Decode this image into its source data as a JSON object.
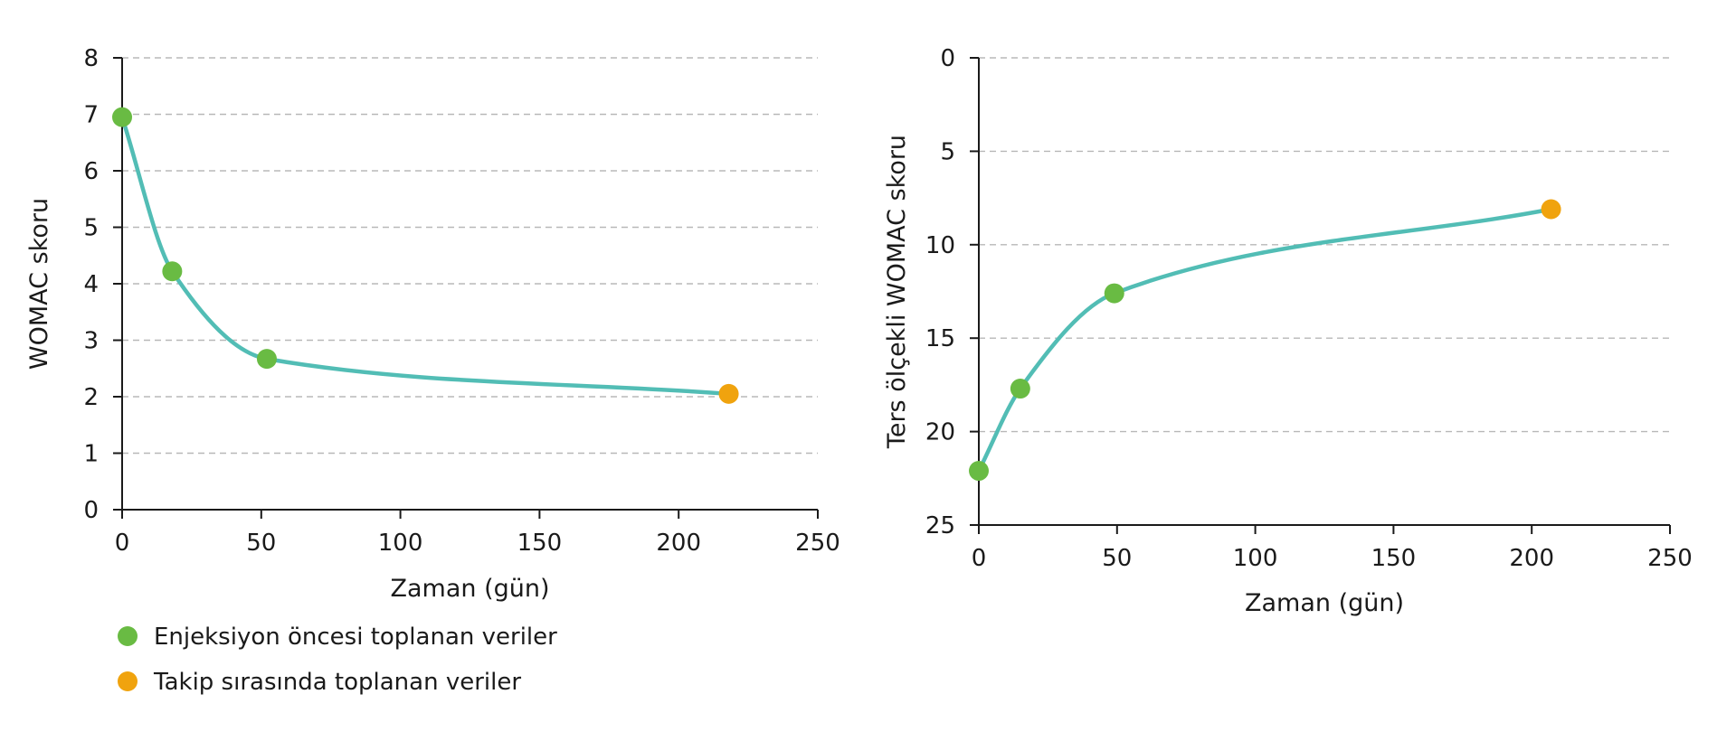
{
  "colors": {
    "line": "#52bdb5",
    "pre_injection": "#69bb43",
    "follow_up": "#f0a30e",
    "grid": "#b8b8b8",
    "axis": "#1a1a1a"
  },
  "legend": {
    "items": [
      {
        "label": "Enjeksiyon öncesi toplanan veriler",
        "color": "#69bb43"
      },
      {
        "label": "Takip sırasında toplanan veriler",
        "color": "#f0a30e"
      }
    ]
  },
  "chart_data": [
    {
      "type": "line",
      "title": "",
      "xlabel": "Zaman (gün)",
      "ylabel": "WOMAC skoru",
      "xlim": [
        0,
        250
      ],
      "ylim": [
        0,
        8
      ],
      "x_ticks": [
        0,
        50,
        100,
        150,
        200,
        250
      ],
      "y_ticks": [
        0,
        1,
        2,
        3,
        4,
        5,
        6,
        7,
        8
      ],
      "y_reversed": false,
      "grid": "horizontal dashed",
      "points": [
        {
          "x": 0,
          "y": 6.95,
          "group": "pre_injection"
        },
        {
          "x": 18,
          "y": 4.22,
          "group": "pre_injection"
        },
        {
          "x": 52,
          "y": 2.67,
          "group": "pre_injection"
        },
        {
          "x": 218,
          "y": 2.05,
          "group": "follow_up"
        }
      ]
    },
    {
      "type": "line",
      "title": "",
      "xlabel": "Zaman (gün)",
      "ylabel": "Ters ölçekli WOMAC skoru",
      "xlim": [
        0,
        250
      ],
      "ylim": [
        0,
        25
      ],
      "x_ticks": [
        0,
        50,
        100,
        150,
        200,
        250
      ],
      "y_ticks": [
        0,
        5,
        10,
        15,
        20,
        25
      ],
      "y_reversed": true,
      "grid": "horizontal dashed",
      "points": [
        {
          "x": 0,
          "y": 22.1,
          "group": "pre_injection"
        },
        {
          "x": 15,
          "y": 17.7,
          "group": "pre_injection"
        },
        {
          "x": 49,
          "y": 12.6,
          "group": "pre_injection"
        },
        {
          "x": 207,
          "y": 8.1,
          "group": "follow_up"
        }
      ]
    }
  ]
}
